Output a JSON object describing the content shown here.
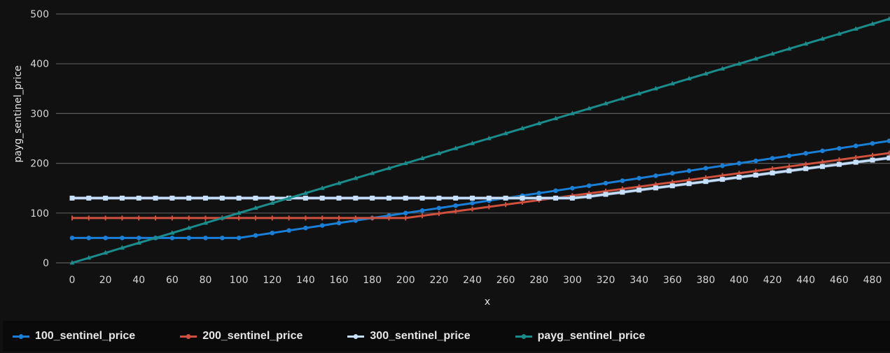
{
  "chart_data": {
    "type": "line",
    "title": "",
    "xlabel": "x",
    "ylabel": "payg_sentinel_price",
    "xlim": [
      0,
      490
    ],
    "ylim": [
      0,
      500
    ],
    "grid": "horizontal",
    "legend_position": "bottom",
    "x_ticks": [
      "0",
      "20",
      "40",
      "60",
      "80",
      "100",
      "120",
      "140",
      "160",
      "180",
      "200",
      "220",
      "240",
      "260",
      "280",
      "300",
      "320",
      "340",
      "360",
      "380",
      "400",
      "420",
      "440",
      "460",
      "480"
    ],
    "y_ticks": [
      "0",
      "100",
      "200",
      "300",
      "400",
      "500"
    ],
    "x": [
      0,
      10,
      20,
      30,
      40,
      50,
      60,
      70,
      80,
      90,
      100,
      110,
      120,
      130,
      140,
      150,
      160,
      170,
      180,
      190,
      200,
      210,
      220,
      230,
      240,
      250,
      260,
      270,
      280,
      290,
      300,
      310,
      320,
      330,
      340,
      350,
      360,
      370,
      380,
      390,
      400,
      410,
      420,
      430,
      440,
      450,
      460,
      470,
      480,
      490
    ],
    "series": [
      {
        "name": "100_sentinel_price",
        "color": "#1a7fd6",
        "marker": "circle",
        "values": [
          50,
          50,
          50,
          50,
          50,
          50,
          50,
          50,
          50,
          50,
          50,
          55,
          60,
          65,
          70,
          75,
          80,
          85,
          90,
          95,
          100,
          105,
          110,
          115,
          120,
          125,
          130,
          135,
          140,
          145,
          150,
          155,
          160,
          165,
          170,
          175,
          180,
          185,
          190,
          195,
          200,
          205,
          210,
          215,
          220,
          225,
          230,
          235,
          240,
          245
        ]
      },
      {
        "name": "200_sentinel_price",
        "color": "#d0513d",
        "marker": "plus",
        "values": [
          90,
          90,
          90,
          90,
          90,
          90,
          90,
          90,
          90,
          90,
          90,
          90,
          90,
          90,
          90,
          90,
          90,
          90,
          90,
          90,
          90,
          94.5,
          99,
          103.5,
          108,
          112.5,
          117,
          121.5,
          126,
          130.5,
          135,
          139.5,
          144,
          148.5,
          153,
          157.5,
          162,
          166.5,
          171,
          175.5,
          180,
          184.5,
          189,
          193.5,
          198,
          202.5,
          207,
          211.5,
          216,
          220.5
        ]
      },
      {
        "name": "300_sentinel_price",
        "color": "#c6e0fb",
        "marker": "square",
        "values": [
          130,
          130,
          130,
          130,
          130,
          130,
          130,
          130,
          130,
          130,
          130,
          130,
          130,
          130,
          130,
          130,
          130,
          130,
          130,
          130,
          130,
          130,
          130,
          130,
          130,
          130,
          130,
          130,
          130,
          130,
          130,
          133.3,
          137.6,
          141.9,
          146.2,
          150.5,
          154.8,
          159.1,
          163.4,
          167.7,
          172,
          176.3,
          180.6,
          184.9,
          189.2,
          193.5,
          197.8,
          202.1,
          206.4,
          210.7
        ]
      },
      {
        "name": "payg_sentinel_price",
        "color": "#1a8c8c",
        "marker": "triangle",
        "values": [
          0,
          10,
          20,
          30,
          40,
          50,
          60,
          70,
          80,
          90,
          100,
          110,
          120,
          130,
          140,
          150,
          160,
          170,
          180,
          190,
          200,
          210,
          220,
          230,
          240,
          250,
          260,
          270,
          280,
          290,
          300,
          310,
          320,
          330,
          340,
          350,
          360,
          370,
          380,
          390,
          400,
          410,
          420,
          430,
          440,
          450,
          460,
          470,
          480,
          490
        ]
      }
    ]
  },
  "legend": {
    "items": [
      {
        "label": "100_sentinel_price",
        "color": "#1a7fd6"
      },
      {
        "label": "200_sentinel_price",
        "color": "#d0513d"
      },
      {
        "label": "300_sentinel_price",
        "color": "#c6e0fb"
      },
      {
        "label": "payg_sentinel_price",
        "color": "#1a8c8c"
      }
    ]
  }
}
